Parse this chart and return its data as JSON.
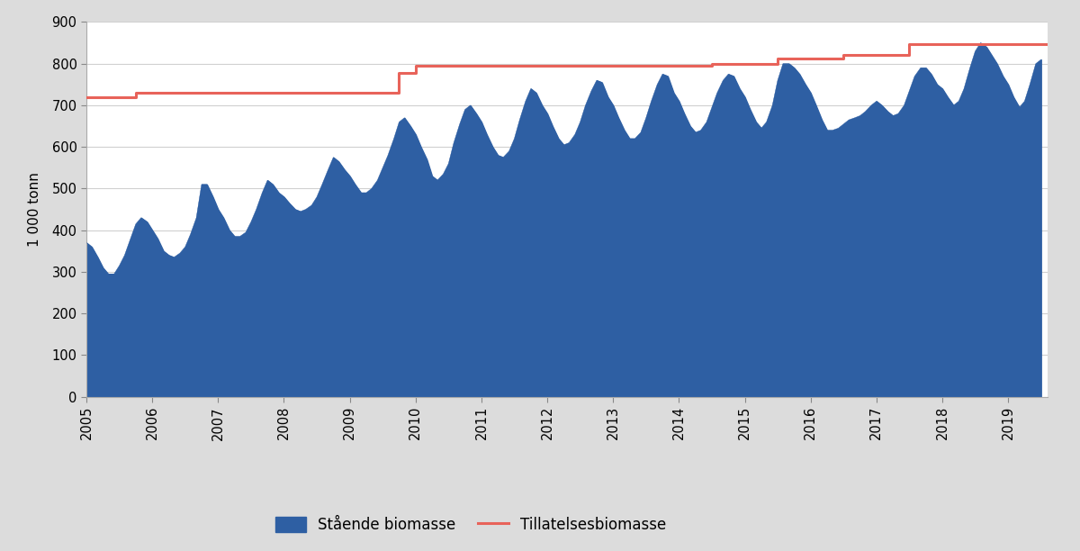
{
  "title": "",
  "ylabel": "1 000 tonn",
  "background_color": "#dcdcdc",
  "plot_bg_color": "#ffffff",
  "area_color": "#2e5fa3",
  "line_color": "#e8635a",
  "ylim": [
    0,
    900
  ],
  "yticks": [
    0,
    100,
    200,
    300,
    400,
    500,
    600,
    700,
    800,
    900
  ],
  "area_label": "Stående biomasse",
  "line_label": "Tillatelsesbiomasse",
  "biomasse_x": [
    2005.0,
    2005.08,
    2005.17,
    2005.25,
    2005.33,
    2005.42,
    2005.5,
    2005.58,
    2005.67,
    2005.75,
    2005.83,
    2005.92,
    2006.0,
    2006.08,
    2006.17,
    2006.25,
    2006.33,
    2006.42,
    2006.5,
    2006.58,
    2006.67,
    2006.75,
    2006.83,
    2006.92,
    2007.0,
    2007.08,
    2007.17,
    2007.25,
    2007.33,
    2007.42,
    2007.5,
    2007.58,
    2007.67,
    2007.75,
    2007.83,
    2007.92,
    2008.0,
    2008.08,
    2008.17,
    2008.25,
    2008.33,
    2008.42,
    2008.5,
    2008.58,
    2008.67,
    2008.75,
    2008.83,
    2008.92,
    2009.0,
    2009.08,
    2009.17,
    2009.25,
    2009.33,
    2009.42,
    2009.5,
    2009.58,
    2009.67,
    2009.75,
    2009.83,
    2009.92,
    2010.0,
    2010.08,
    2010.17,
    2010.25,
    2010.33,
    2010.42,
    2010.5,
    2010.58,
    2010.67,
    2010.75,
    2010.83,
    2010.92,
    2011.0,
    2011.08,
    2011.17,
    2011.25,
    2011.33,
    2011.42,
    2011.5,
    2011.58,
    2011.67,
    2011.75,
    2011.83,
    2011.92,
    2012.0,
    2012.08,
    2012.17,
    2012.25,
    2012.33,
    2012.42,
    2012.5,
    2012.58,
    2012.67,
    2012.75,
    2012.83,
    2012.92,
    2013.0,
    2013.08,
    2013.17,
    2013.25,
    2013.33,
    2013.42,
    2013.5,
    2013.58,
    2013.67,
    2013.75,
    2013.83,
    2013.92,
    2014.0,
    2014.08,
    2014.17,
    2014.25,
    2014.33,
    2014.42,
    2014.5,
    2014.58,
    2014.67,
    2014.75,
    2014.83,
    2014.92,
    2015.0,
    2015.08,
    2015.17,
    2015.25,
    2015.33,
    2015.42,
    2015.5,
    2015.58,
    2015.67,
    2015.75,
    2015.83,
    2015.92,
    2016.0,
    2016.08,
    2016.17,
    2016.25,
    2016.33,
    2016.42,
    2016.5,
    2016.58,
    2016.67,
    2016.75,
    2016.83,
    2016.92,
    2017.0,
    2017.08,
    2017.17,
    2017.25,
    2017.33,
    2017.42,
    2017.5,
    2017.58,
    2017.67,
    2017.75,
    2017.83,
    2017.92,
    2018.0,
    2018.08,
    2018.17,
    2018.25,
    2018.33,
    2018.42,
    2018.5,
    2018.58,
    2018.67,
    2018.75,
    2018.83,
    2018.92,
    2019.0,
    2019.08,
    2019.17,
    2019.25,
    2019.33,
    2019.42,
    2019.5
  ],
  "biomasse_y": [
    370,
    360,
    335,
    310,
    295,
    295,
    315,
    340,
    380,
    415,
    430,
    420,
    400,
    380,
    350,
    340,
    335,
    345,
    360,
    390,
    430,
    510,
    510,
    480,
    450,
    430,
    400,
    385,
    385,
    395,
    420,
    450,
    490,
    520,
    510,
    490,
    480,
    465,
    450,
    445,
    450,
    460,
    480,
    510,
    545,
    575,
    565,
    545,
    530,
    510,
    490,
    490,
    500,
    520,
    550,
    580,
    620,
    660,
    670,
    650,
    630,
    600,
    570,
    530,
    520,
    535,
    560,
    610,
    655,
    690,
    700,
    680,
    660,
    630,
    600,
    580,
    575,
    590,
    620,
    665,
    710,
    740,
    730,
    700,
    680,
    650,
    620,
    605,
    610,
    630,
    660,
    700,
    735,
    760,
    755,
    720,
    700,
    670,
    640,
    620,
    620,
    635,
    670,
    710,
    750,
    775,
    770,
    730,
    710,
    680,
    650,
    635,
    640,
    660,
    695,
    730,
    760,
    775,
    770,
    740,
    720,
    690,
    660,
    645,
    660,
    700,
    760,
    800,
    800,
    790,
    775,
    750,
    730,
    700,
    665,
    640,
    640,
    645,
    655,
    665,
    670,
    675,
    685,
    700,
    710,
    700,
    685,
    675,
    680,
    700,
    735,
    770,
    790,
    790,
    775,
    750,
    740,
    720,
    700,
    710,
    740,
    790,
    830,
    850,
    840,
    820,
    800,
    770,
    750,
    720,
    695,
    710,
    750,
    800,
    810
  ],
  "tillatelse_x": [
    2005.0,
    2005.75,
    2005.75,
    2006.75,
    2006.75,
    2009.75,
    2009.75,
    2010.0,
    2010.0,
    2014.5,
    2014.5,
    2015.5,
    2015.5,
    2016.5,
    2016.5,
    2017.5,
    2017.5,
    2019.6
  ],
  "tillatelse_y": [
    720,
    720,
    730,
    730,
    730,
    730,
    778,
    778,
    795,
    795,
    800,
    800,
    812,
    812,
    822,
    822,
    847,
    847
  ],
  "xlim": [
    2005.0,
    2019.6
  ],
  "xticks": [
    2005,
    2006,
    2007,
    2008,
    2009,
    2010,
    2011,
    2012,
    2013,
    2014,
    2015,
    2016,
    2017,
    2018,
    2019
  ],
  "grid_color": "#d0d0d0",
  "line_width": 2.2
}
